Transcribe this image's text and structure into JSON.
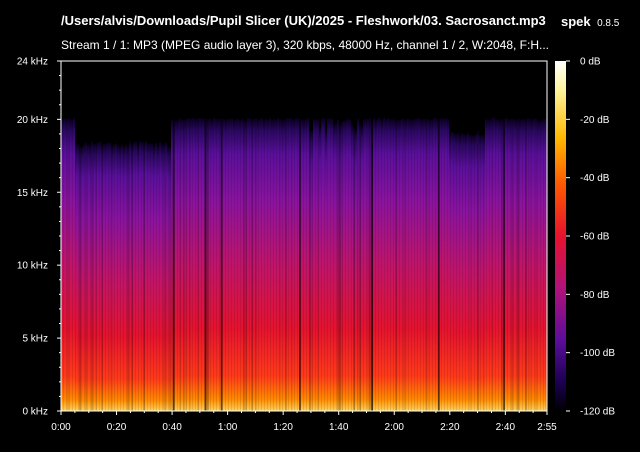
{
  "window": {
    "file_path": "/Users/alvis/Downloads/Pupil Slicer (UK)/2025 - Fleshwork/03. Sacrosanct.mp3",
    "app_name": "spek",
    "app_version": "0.8.5",
    "stream_info": "Stream 1 / 1: MP3 (MPEG audio layer 3), 320 kbps, 48000 Hz, channel 1 / 2, W:2048, F:H..."
  },
  "spectrogram": {
    "freq_labels": [
      "24 kHz",
      "20 kHz",
      "15 kHz",
      "10 kHz",
      "5 kHz",
      "0 kHz"
    ],
    "freq_values_khz": [
      24,
      20,
      15,
      10,
      5,
      0
    ],
    "time_labels": [
      "0:00",
      "0:20",
      "0:40",
      "1:00",
      "1:20",
      "1:40",
      "2:00",
      "2:20",
      "2:40",
      "2:55"
    ],
    "time_values_s": [
      0,
      20,
      40,
      60,
      80,
      100,
      120,
      140,
      160,
      175
    ],
    "duration_s": 175,
    "cutoff_khz_approx": 20,
    "colors": [
      "#000000",
      "#1a0050",
      "#5a0d9a",
      "#b0127a",
      "#e8122c",
      "#ff5a00",
      "#ffb800",
      "#fff4a0",
      "#ffffff"
    ]
  },
  "legend": {
    "db_labels": [
      "0 dB",
      "-20 dB",
      "-40 dB",
      "-60 dB",
      "-80 dB",
      "-100 dB",
      "-120 dB"
    ],
    "db_values": [
      0,
      -20,
      -40,
      -60,
      -80,
      -100,
      -120
    ]
  }
}
